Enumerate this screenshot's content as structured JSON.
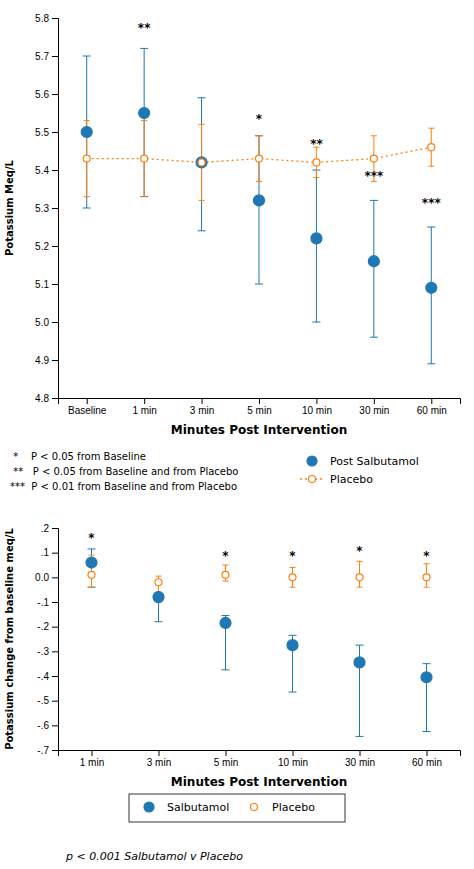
{
  "chart_data": [
    {
      "type": "line",
      "categories": [
        "Baseline",
        "1 min",
        "3 min",
        "5 min",
        "10 min",
        "30 min",
        "60 min"
      ],
      "x_label": "Minutes Post Intervention",
      "y_label": "Potassium Meq/L",
      "ylim": [
        4.8,
        5.8
      ],
      "yticks": [
        4.8,
        4.9,
        {
          "value": 5,
          "label": "5.0"
        },
        5.1,
        5.2,
        5.3,
        5.4,
        5.5,
        5.6,
        5.7,
        5.8
      ],
      "legend": "bottom",
      "series": [
        {
          "name": "Post Salbutamol",
          "marker": "filled-circle",
          "line_style": "none",
          "values": [
            5.5,
            5.55,
            5.42,
            5.32,
            5.22,
            5.16,
            5.09
          ],
          "error_upper": [
            0.2,
            0.17,
            0.17,
            0.17,
            0.18,
            0.16,
            0.16
          ],
          "error_lower": [
            0.2,
            0.22,
            0.18,
            0.22,
            0.22,
            0.2,
            0.2
          ]
        },
        {
          "name": "Placebo",
          "marker": "open-circle",
          "line_style": "dotted",
          "values": [
            5.43,
            5.43,
            5.42,
            5.43,
            5.42,
            5.43,
            5.46
          ],
          "error_upper": [
            0.1,
            0.1,
            0.1,
            0.06,
            0.04,
            0.06,
            0.05
          ],
          "error_lower": [
            0.1,
            0.1,
            0.1,
            0.06,
            0.04,
            0.06,
            0.05
          ]
        }
      ],
      "annotations": [
        {
          "x": "1 min",
          "y": 5.76,
          "text": "**"
        },
        {
          "x": "5 min",
          "y": 5.52,
          "text": "*"
        },
        {
          "x": "10 min",
          "y": 5.455,
          "text": "**"
        },
        {
          "x": "30 min",
          "y": 5.37,
          "text": "***"
        },
        {
          "x": "60 min",
          "y": 5.3,
          "text": "***"
        }
      ],
      "captions": [
        " *    P < 0.05 from Baseline",
        " **   P < 0.05 from Baseline and from Placebo",
        "***  P < 0.01 from Baseline and from Placebo"
      ]
    },
    {
      "type": "line",
      "categories": [
        "1 min",
        "3 min",
        "5 min",
        "10 min",
        "30 min",
        "60 min"
      ],
      "x_label": "Minutes Post Intervention",
      "y_label": "Potassium change from baseline meq/L",
      "ylim": [
        -0.7,
        0.2
      ],
      "yticks": [
        {
          "value": -0.7,
          "label": "-.7"
        },
        {
          "value": -0.6,
          "label": "-.6"
        },
        {
          "value": -0.5,
          "label": "-.5"
        },
        {
          "value": -0.4,
          "label": "-.4"
        },
        {
          "value": -0.3,
          "label": "-.3"
        },
        {
          "value": -0.2,
          "label": "-.2"
        },
        {
          "value": -0.1,
          "label": "-.1"
        },
        {
          "value": 0,
          "label": "0.0"
        },
        {
          "value": 0.1,
          "label": ".1"
        },
        {
          "value": 0.2,
          "label": ".2"
        }
      ],
      "legend": "bottom",
      "series": [
        {
          "name": "Salbutamol",
          "marker": "filled-circle",
          "line_style": "none",
          "values": [
            0.06,
            -0.08,
            -0.185,
            -0.275,
            -0.345,
            -0.405
          ],
          "error_upper": [
            0.055,
            0.015,
            0.03,
            0.04,
            0.07,
            0.055
          ],
          "error_lower": [
            0.1,
            0.1,
            0.19,
            0.19,
            0.3,
            0.22
          ]
        },
        {
          "name": "Placebo",
          "marker": "open-circle",
          "line_style": "none",
          "values": [
            0.01,
            -0.02,
            0.01,
            0.0,
            0.0,
            0.0
          ],
          "error_upper": [
            0.08,
            0.025,
            0.04,
            0.04,
            0.065,
            0.055
          ],
          "error_lower": [
            0.05,
            0.04,
            0.025,
            0.04,
            0.04,
            0.04
          ]
        }
      ],
      "annotations": [
        {
          "x": "1 min",
          "y": 0.14,
          "text": "*"
        },
        {
          "x": "5 min",
          "y": 0.065,
          "text": "*"
        },
        {
          "x": "10 min",
          "y": 0.065,
          "text": "*"
        },
        {
          "x": "30 min",
          "y": 0.085,
          "text": "*"
        },
        {
          "x": "60 min",
          "y": 0.065,
          "text": "*"
        }
      ],
      "captions": [
        "p < 0.001 Salbutamol v Placebo"
      ]
    }
  ]
}
